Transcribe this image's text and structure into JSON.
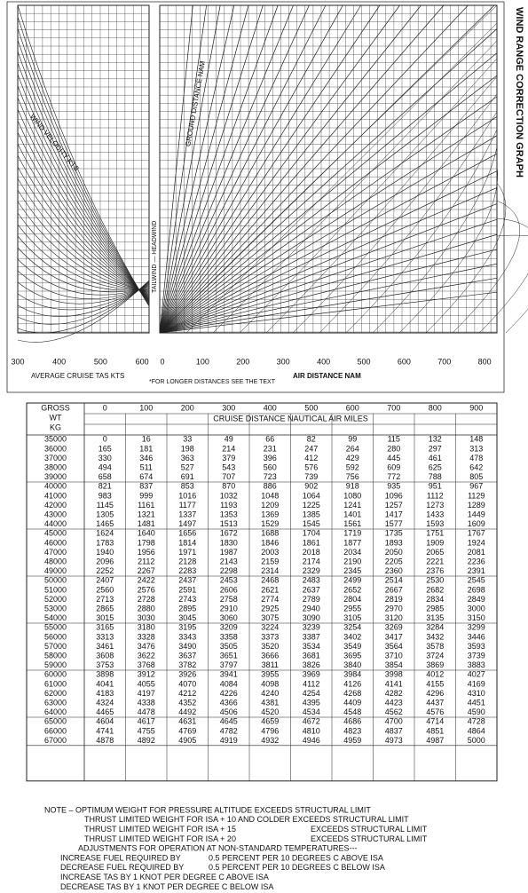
{
  "graph": {
    "title": "WIND RANGE CORRECTION GRAPH",
    "tas_ticks": [
      300,
      400,
      500,
      600
    ],
    "distance_ticks": [
      0,
      100,
      200,
      300,
      400,
      500,
      600,
      700,
      800
    ],
    "tas_label": "AVERAGE CRUISE TAS  KTS",
    "footnote": "*FOR LONGER DISTANCES SEE THE TEXT",
    "distance_label": "AIR DISTANCE  NAM",
    "wind_label": "WIND VELOCITY  KTS",
    "ground_label": "GROUND DISTANCE  NAM",
    "tail_head_label": "TAILWIND — HEADWIND"
  },
  "table": {
    "corner": [
      "GROSS",
      "WT",
      "KG"
    ],
    "columns": [
      0,
      100,
      200,
      300,
      400,
      500,
      600,
      700,
      800,
      900
    ],
    "subtitle": "CRUISE DISTANCE NAUTICAL AIR MILES",
    "rows": [
      {
        "weight": 35000,
        "values": [
          0,
          16,
          33,
          49,
          66,
          82,
          99,
          115,
          132,
          148
        ]
      },
      {
        "weight": 36000,
        "values": [
          165,
          181,
          198,
          214,
          231,
          247,
          264,
          280,
          297,
          313
        ]
      },
      {
        "weight": 37000,
        "values": [
          330,
          346,
          363,
          379,
          396,
          412,
          429,
          445,
          461,
          478
        ]
      },
      {
        "weight": 38000,
        "values": [
          494,
          511,
          527,
          543,
          560,
          576,
          592,
          609,
          625,
          642
        ]
      },
      {
        "weight": 39000,
        "values": [
          658,
          674,
          691,
          707,
          723,
          739,
          756,
          772,
          788,
          805
        ]
      },
      {
        "weight": 40000,
        "values": [
          821,
          837,
          853,
          870,
          886,
          902,
          918,
          935,
          951,
          967
        ]
      },
      {
        "weight": 41000,
        "values": [
          983,
          999,
          1016,
          1032,
          1048,
          1064,
          1080,
          1096,
          1112,
          1129
        ]
      },
      {
        "weight": 42000,
        "values": [
          1145,
          1161,
          1177,
          1193,
          1209,
          1225,
          1241,
          1257,
          1273,
          1289
        ]
      },
      {
        "weight": 43000,
        "values": [
          1305,
          1321,
          1337,
          1353,
          1369,
          1385,
          1401,
          1417,
          1433,
          1449
        ]
      },
      {
        "weight": 44000,
        "values": [
          1465,
          1481,
          1497,
          1513,
          1529,
          1545,
          1561,
          1577,
          1593,
          1609
        ]
      },
      {
        "weight": 45000,
        "values": [
          1624,
          1640,
          1656,
          1672,
          1688,
          1704,
          1719,
          1735,
          1751,
          1767
        ]
      },
      {
        "weight": 46000,
        "values": [
          1783,
          1798,
          1814,
          1830,
          1846,
          1861,
          1877,
          1893,
          1909,
          1924
        ]
      },
      {
        "weight": 47000,
        "values": [
          1940,
          1956,
          1971,
          1987,
          2003,
          2018,
          2034,
          2050,
          2065,
          2081
        ]
      },
      {
        "weight": 48000,
        "values": [
          2096,
          2112,
          2128,
          2143,
          2159,
          2174,
          2190,
          2205,
          2221,
          2236
        ]
      },
      {
        "weight": 49000,
        "values": [
          2252,
          2267,
          2283,
          2298,
          2314,
          2329,
          2345,
          2360,
          2376,
          2391
        ]
      },
      {
        "weight": 50000,
        "values": [
          2407,
          2422,
          2437,
          2453,
          2468,
          2483,
          2499,
          2514,
          2530,
          2545
        ]
      },
      {
        "weight": 51000,
        "values": [
          2560,
          2576,
          2591,
          2606,
          2621,
          2637,
          2652,
          2667,
          2682,
          2698
        ]
      },
      {
        "weight": 52000,
        "values": [
          2713,
          2728,
          2743,
          2758,
          2774,
          2789,
          2804,
          2819,
          2834,
          2849
        ]
      },
      {
        "weight": 53000,
        "values": [
          2865,
          2880,
          2895,
          2910,
          2925,
          2940,
          2955,
          2970,
          2985,
          3000
        ]
      },
      {
        "weight": 54000,
        "values": [
          3015,
          3030,
          3045,
          3060,
          3075,
          3090,
          3105,
          3120,
          3135,
          3150
        ]
      },
      {
        "weight": 55000,
        "values": [
          3165,
          3180,
          3195,
          3209,
          3224,
          3239,
          3254,
          3269,
          3284,
          3299
        ]
      },
      {
        "weight": 56000,
        "values": [
          3313,
          3328,
          3343,
          3358,
          3373,
          3387,
          3402,
          3417,
          3432,
          3446
        ]
      },
      {
        "weight": 57000,
        "values": [
          3461,
          3476,
          3490,
          3505,
          3520,
          3534,
          3549,
          3564,
          3578,
          3593
        ]
      },
      {
        "weight": 58000,
        "values": [
          3608,
          3622,
          3637,
          3651,
          3666,
          3681,
          3695,
          3710,
          3724,
          3739
        ]
      },
      {
        "weight": 59000,
        "values": [
          3753,
          3768,
          3782,
          3797,
          3811,
          3826,
          3840,
          3854,
          3869,
          3883
        ]
      },
      {
        "weight": 60000,
        "values": [
          3898,
          3912,
          3926,
          3941,
          3955,
          3969,
          3984,
          3998,
          4012,
          4027
        ]
      },
      {
        "weight": 61000,
        "values": [
          4041,
          4055,
          4070,
          4084,
          4098,
          4112,
          4126,
          4141,
          4155,
          4169
        ]
      },
      {
        "weight": 62000,
        "values": [
          4183,
          4197,
          4212,
          4226,
          4240,
          4254,
          4268,
          4282,
          4296,
          4310
        ]
      },
      {
        "weight": 63000,
        "values": [
          4324,
          4338,
          4352,
          4366,
          4381,
          4395,
          4409,
          4423,
          4437,
          4451
        ]
      },
      {
        "weight": 64000,
        "values": [
          4465,
          4478,
          4492,
          4506,
          4520,
          4534,
          4548,
          4562,
          4576,
          4590
        ]
      },
      {
        "weight": 65000,
        "values": [
          4604,
          4617,
          4631,
          4645,
          4659,
          4672,
          4686,
          4700,
          4714,
          4728
        ]
      },
      {
        "weight": 66000,
        "values": [
          4741,
          4755,
          4769,
          4782,
          4796,
          4810,
          4823,
          4837,
          4851,
          4864
        ]
      },
      {
        "weight": 67000,
        "values": [
          4878,
          4892,
          4905,
          4919,
          4932,
          4946,
          4959,
          4973,
          4987,
          5000
        ]
      }
    ]
  },
  "notes": [
    [
      "NOTE – OPTIMUM WEIGHT FOR PRESSURE ALTITUDE EXCEEDS STRUCTURAL LIMIT"
    ],
    [
      "THRUST LIMITED WEIGHT FOR ISA + 10 AND COLDER EXCEEDS STRUCTURAL LIMIT"
    ],
    [
      "THRUST LIMITED WEIGHT FOR ISA + 15",
      "EXCEEDS STRUCTURAL LIMIT"
    ],
    [
      "THRUST LIMITED WEIGHT FOR ISA + 20",
      "EXCEEDS STRUCTURAL LIMIT"
    ],
    [
      "ADJUSTMENTS FOR OPERATION AT NON-STANDARD TEMPERATURES---"
    ],
    [
      "INCREASE FUEL REQUIRED BY",
      "0.5 PERCENT PER 10 DEGREES C ABOVE ISA"
    ],
    [
      "DECREASE FUEL REQUIRED BY",
      "0.5 PERCENT PER 10 DEGREES C BELOW ISA"
    ],
    [
      "INCREASE TAS BY 1 KNOT PER DEGREE C ABOVE ISA"
    ],
    [
      "DECREASE TAS BY 1 KNOT PER DEGREE C BELOW ISA"
    ]
  ]
}
